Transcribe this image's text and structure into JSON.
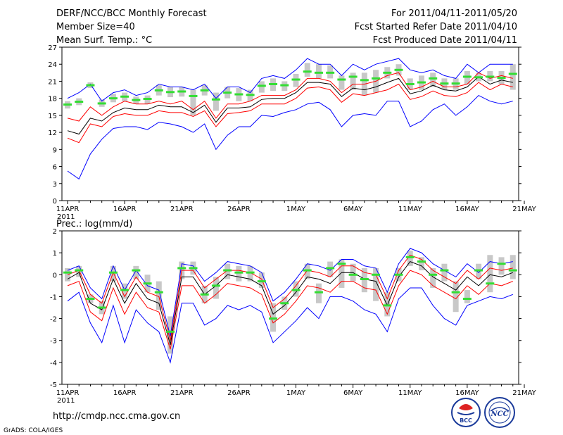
{
  "header": {
    "title": "DERF/NCC/BCC Monthly Forecast",
    "member_size": "Member Size=40",
    "variable": "Mean Surf. Temp.: °C",
    "period": "For 2011/04/11-2011/05/20",
    "refer_date": "Fcst Started Refer Date 2011/04/10",
    "produced_date": "Fcst Produced Date 2011/04/11"
  },
  "footer": {
    "url": "http://cmdp.ncc.cma.gov.cn",
    "grads": "GrADS: COLA/IGES",
    "logo_bcc": "BCC",
    "logo_ncc": "NCC"
  },
  "colors": {
    "blue": "#0000ff",
    "red": "#ff0000",
    "black": "#000000",
    "green": "#33dd33",
    "gray": "#c8c8c8"
  },
  "chart_data": [
    {
      "type": "line",
      "title": "Mean Surf. Temp.: °C",
      "ylim": [
        0,
        27
      ],
      "yticks": [
        0,
        3,
        6,
        9,
        12,
        15,
        18,
        21,
        24,
        27
      ],
      "xlabels": [
        "11APR",
        "16APR",
        "21APR",
        "26APR",
        "1MAY",
        "6MAY",
        "11MAY",
        "16MAY",
        "21MAY"
      ],
      "year_label": "2011",
      "x": [
        1,
        2,
        3,
        4,
        5,
        6,
        7,
        8,
        9,
        10,
        11,
        12,
        13,
        14,
        15,
        16,
        17,
        18,
        19,
        20,
        21,
        22,
        23,
        24,
        25,
        26,
        27,
        28,
        29,
        30,
        31,
        32,
        33,
        34,
        35,
        36,
        37,
        38,
        39,
        40
      ],
      "series": [
        {
          "name": "max",
          "color": "blue",
          "values": [
            18.0,
            19.0,
            20.5,
            17.5,
            19.0,
            19.5,
            18.5,
            19.0,
            20.5,
            20.0,
            20.0,
            19.5,
            20.5,
            18.0,
            20.0,
            20.0,
            19.0,
            21.5,
            22.0,
            21.5,
            23.0,
            25.0,
            24.0,
            24.0,
            22.0,
            24.0,
            23.0,
            24.0,
            24.5,
            25.0,
            23.0,
            22.5,
            23.0,
            22.0,
            21.5,
            24.0,
            22.5,
            24.0,
            24.0,
            24.0
          ]
        },
        {
          "name": "upper",
          "color": "red",
          "values": [
            14.5,
            14.0,
            16.5,
            15.0,
            16.5,
            17.5,
            17.0,
            17.0,
            17.5,
            17.0,
            17.5,
            16.0,
            17.5,
            14.5,
            17.0,
            17.0,
            17.5,
            18.5,
            18.5,
            18.5,
            19.5,
            21.5,
            21.5,
            21.0,
            19.0,
            20.5,
            20.5,
            21.0,
            22.0,
            22.5,
            19.5,
            20.0,
            21.0,
            20.0,
            20.0,
            20.5,
            22.5,
            21.5,
            22.0,
            21.5
          ]
        },
        {
          "name": "mean",
          "color": "black",
          "values": [
            12.3,
            11.7,
            14.5,
            14.0,
            15.5,
            16.3,
            16.0,
            16.0,
            16.8,
            16.5,
            16.5,
            15.5,
            16.8,
            13.8,
            16.3,
            16.3,
            16.5,
            17.8,
            18.0,
            18.0,
            19.0,
            20.8,
            20.8,
            20.5,
            18.3,
            19.8,
            19.5,
            20.0,
            20.8,
            21.5,
            18.8,
            19.3,
            20.3,
            19.5,
            19.3,
            20.0,
            21.8,
            20.5,
            21.2,
            20.8
          ]
        },
        {
          "name": "lower",
          "color": "red",
          "values": [
            11.0,
            10.2,
            13.5,
            13.0,
            14.8,
            15.3,
            15.0,
            15.0,
            15.8,
            15.5,
            15.5,
            14.8,
            15.8,
            13.0,
            15.3,
            15.5,
            15.8,
            17.0,
            17.0,
            17.0,
            18.0,
            19.8,
            20.0,
            19.5,
            17.3,
            18.8,
            18.5,
            19.0,
            19.5,
            20.5,
            17.8,
            18.3,
            19.3,
            18.5,
            18.3,
            19.0,
            20.8,
            19.5,
            20.5,
            20.0
          ]
        },
        {
          "name": "min",
          "color": "blue",
          "values": [
            5.2,
            3.8,
            8.2,
            10.8,
            12.7,
            13.0,
            13.0,
            12.5,
            13.8,
            13.5,
            13.0,
            12.0,
            13.5,
            9.0,
            11.5,
            13.0,
            13.0,
            15.0,
            14.8,
            15.5,
            16.0,
            17.0,
            17.3,
            16.0,
            13.0,
            15.0,
            15.3,
            15.0,
            17.5,
            17.5,
            13.0,
            14.0,
            16.0,
            17.0,
            15.0,
            16.5,
            18.5,
            17.5,
            17.0,
            17.5
          ]
        }
      ],
      "obs_values": [
        16.9,
        17.4,
        20.3,
        17.1,
        18.0,
        18.3,
        17.7,
        17.9,
        19.4,
        19.1,
        19.2,
        18.4,
        19.4,
        17.8,
        19.0,
        18.7,
        18.6,
        20.2,
        20.5,
        20.3,
        21.3,
        22.7,
        22.5,
        22.5,
        21.3,
        21.8,
        21.2,
        21.5,
        22.5,
        23.0,
        20.5,
        20.8,
        21.5,
        20.6,
        20.6,
        21.8,
        21.7,
        21.8,
        21.6,
        22.3
      ],
      "box_low": [
        16.2,
        16.8,
        19.8,
        16.5,
        17.3,
        17.5,
        17.0,
        17.0,
        18.5,
        18.2,
        18.3,
        15.0,
        18.5,
        15.8,
        18.0,
        17.5,
        17.5,
        19.0,
        19.3,
        19.3,
        20.0,
        21.8,
        21.5,
        21.5,
        19.5,
        19.5,
        18.5,
        19.0,
        21.5,
        22.0,
        19.5,
        19.5,
        20.0,
        19.5,
        19.5,
        20.5,
        21.0,
        21.0,
        20.5,
        19.5
      ],
      "box_high": [
        17.5,
        18.0,
        20.8,
        17.8,
        18.8,
        19.0,
        18.3,
        18.5,
        20.3,
        20.0,
        20.0,
        19.5,
        20.3,
        19.0,
        20.0,
        19.8,
        19.5,
        21.0,
        21.5,
        21.0,
        22.3,
        24.2,
        24.0,
        23.8,
        22.0,
        22.5,
        22.5,
        23.0,
        23.5,
        24.0,
        21.5,
        22.0,
        22.5,
        21.5,
        21.5,
        22.8,
        22.5,
        22.8,
        22.8,
        24.0
      ]
    },
    {
      "type": "line",
      "title": "Prec.: log(mm/d)",
      "ylim": [
        -5,
        2
      ],
      "yticks": [
        -5,
        -4,
        -3,
        -2,
        -1,
        0,
        1,
        2
      ],
      "xlabels": [
        "11APR",
        "16APR",
        "21APR",
        "26APR",
        "1MAY",
        "6MAY",
        "11MAY",
        "16MAY",
        "21MAY"
      ],
      "year_label": "2011",
      "x": [
        1,
        2,
        3,
        4,
        5,
        6,
        7,
        8,
        9,
        10,
        11,
        12,
        13,
        14,
        15,
        16,
        17,
        18,
        19,
        20,
        21,
        22,
        23,
        24,
        25,
        26,
        27,
        28,
        29,
        30,
        31,
        32,
        33,
        34,
        35,
        36,
        37,
        38,
        39,
        40
      ],
      "series": [
        {
          "name": "max",
          "color": "blue",
          "values": [
            0.2,
            0.4,
            -0.6,
            -1.1,
            0.4,
            -0.7,
            0.2,
            -0.5,
            -0.7,
            -2.8,
            0.5,
            0.4,
            -0.3,
            0.1,
            0.6,
            0.5,
            0.4,
            0.1,
            -1.2,
            -0.8,
            -0.2,
            0.5,
            0.4,
            0.2,
            0.7,
            0.7,
            0.4,
            0.3,
            -0.8,
            0.5,
            1.2,
            1.0,
            0.5,
            0.2,
            -0.1,
            0.5,
            0.1,
            0.6,
            0.5,
            0.6
          ]
        },
        {
          "name": "upper",
          "color": "red",
          "values": [
            0.0,
            0.2,
            -0.9,
            -1.3,
            0.1,
            -1.0,
            -0.1,
            -0.8,
            -1.0,
            -3.0,
            0.2,
            0.2,
            -0.6,
            -0.2,
            0.2,
            0.2,
            0.1,
            -0.2,
            -1.5,
            -1.1,
            -0.5,
            0.2,
            0.1,
            -0.1,
            0.4,
            0.4,
            0.1,
            0.0,
            -1.1,
            0.2,
            0.9,
            0.7,
            0.2,
            -0.1,
            -0.4,
            0.2,
            -0.2,
            0.3,
            0.2,
            0.3
          ]
        },
        {
          "name": "mean",
          "color": "black",
          "values": [
            -0.2,
            0.1,
            -1.3,
            -1.6,
            -0.2,
            -1.3,
            -0.4,
            -1.1,
            -1.3,
            -3.2,
            -0.1,
            -0.1,
            -0.9,
            -0.5,
            0.0,
            -0.1,
            -0.2,
            -0.5,
            -1.8,
            -1.4,
            -0.8,
            -0.1,
            -0.2,
            -0.4,
            0.1,
            0.1,
            -0.2,
            -0.3,
            -1.4,
            -0.1,
            0.6,
            0.4,
            -0.1,
            -0.4,
            -0.7,
            -0.1,
            -0.5,
            0.0,
            -0.1,
            0.1
          ]
        },
        {
          "name": "lower",
          "color": "red",
          "values": [
            -0.5,
            -0.3,
            -1.7,
            -2.1,
            -0.6,
            -1.8,
            -0.8,
            -1.5,
            -1.7,
            -3.4,
            -0.5,
            -0.5,
            -1.3,
            -0.9,
            -0.4,
            -0.5,
            -0.6,
            -0.9,
            -2.2,
            -1.8,
            -1.2,
            -0.5,
            -0.6,
            -0.8,
            -0.3,
            -0.3,
            -0.6,
            -0.7,
            -1.8,
            -0.5,
            0.2,
            0.0,
            -0.5,
            -0.8,
            -1.1,
            -0.5,
            -0.9,
            -0.4,
            -0.5,
            -0.3
          ]
        },
        {
          "name": "min",
          "color": "blue",
          "values": [
            -1.2,
            -0.8,
            -2.2,
            -3.1,
            -1.4,
            -3.1,
            -1.6,
            -2.2,
            -2.6,
            -4.0,
            -1.3,
            -1.3,
            -2.3,
            -2.0,
            -1.4,
            -1.6,
            -1.4,
            -1.7,
            -3.1,
            -2.6,
            -2.1,
            -1.5,
            -2.0,
            -1.0,
            -1.0,
            -1.2,
            -1.6,
            -1.8,
            -2.6,
            -1.1,
            -0.6,
            -0.6,
            -1.4,
            -2.0,
            -2.3,
            -1.4,
            -1.2,
            -1.0,
            -1.1,
            -0.9
          ]
        }
      ],
      "obs_values": [
        0.1,
        0.2,
        -1.1,
        -1.5,
        0.1,
        -0.7,
        0.2,
        -0.4,
        -0.8,
        -2.6,
        0.3,
        0.3,
        -0.9,
        -0.5,
        0.2,
        0.1,
        0.1,
        -0.3,
        -2.0,
        -1.3,
        -0.7,
        0.2,
        -0.8,
        0.3,
        0.5,
        0.0,
        -0.2,
        0.0,
        -1.4,
        0.0,
        0.8,
        0.6,
        0.0,
        0.2,
        -0.8,
        -1.1,
        0.2,
        -0.4,
        0.5,
        0.2
      ],
      "box_low": [
        -0.3,
        -0.1,
        -1.3,
        -1.8,
        -0.3,
        -1.1,
        -0.2,
        -0.8,
        -1.6,
        -3.6,
        -0.2,
        0.0,
        -1.3,
        -1.1,
        -0.2,
        -0.3,
        -0.3,
        -0.6,
        -2.6,
        -1.6,
        -1.0,
        -0.2,
        -1.3,
        -0.1,
        -0.6,
        -0.3,
        -0.8,
        -1.2,
        -1.9,
        -0.3,
        0.4,
        0.2,
        -0.6,
        -0.3,
        -1.7,
        -1.3,
        -0.2,
        -0.8,
        0.0,
        -0.2
      ],
      "box_high": [
        0.3,
        0.4,
        -0.9,
        -1.2,
        0.4,
        -0.4,
        0.4,
        0.0,
        -0.3,
        -1.9,
        0.6,
        0.6,
        -0.5,
        -0.1,
        0.5,
        0.4,
        0.4,
        0.1,
        -1.3,
        -1.0,
        -0.3,
        0.5,
        -0.4,
        0.6,
        0.7,
        0.5,
        0.3,
        0.3,
        -0.8,
        0.3,
        1.1,
        0.8,
        0.3,
        0.5,
        -0.3,
        -0.7,
        0.5,
        0.9,
        0.8,
        0.9
      ]
    }
  ]
}
